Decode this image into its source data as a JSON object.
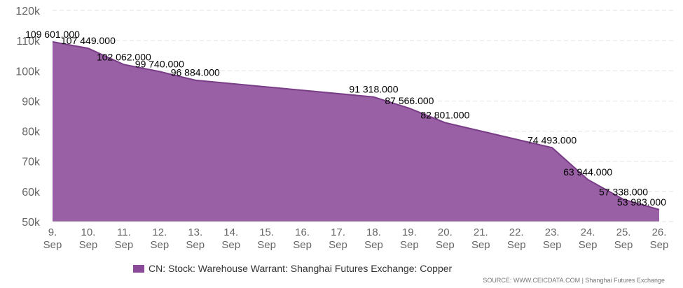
{
  "chart_data": {
    "type": "area",
    "x_ticks": [
      "9.\nSep",
      "10.\nSep",
      "11.\nSep",
      "12.\nSep",
      "13.\nSep",
      "14.\nSep",
      "15.\nSep",
      "16.\nSep",
      "17.\nSep",
      "18.\nSep",
      "19.\nSep",
      "20.\nSep",
      "21.\nSep",
      "22.\nSep",
      "23.\nSep",
      "24.\nSep",
      "25.\nSep",
      "26.\nSep"
    ],
    "y_ticks": [
      "50k",
      "60k",
      "70k",
      "80k",
      "90k",
      "100k",
      "110k",
      "120k"
    ],
    "ylim": [
      50000,
      120000
    ],
    "grid": true,
    "legend_position": "bottom",
    "series": [
      {
        "name": "CN: Stock: Warehouse Warrant: Shanghai Futures Exchange: Copper",
        "color": "#8b4a99",
        "points": [
          {
            "x": 0,
            "y": 109601,
            "label": "109 601.000"
          },
          {
            "x": 1,
            "y": 107449,
            "label": "107 449.000"
          },
          {
            "x": 2,
            "y": 102062,
            "label": "102 062.000"
          },
          {
            "x": 3,
            "y": 99740,
            "label": "99 740.000"
          },
          {
            "x": 4,
            "y": 96884,
            "label": "96 884.000"
          },
          {
            "x": 9,
            "y": 91318,
            "label": "91 318.000"
          },
          {
            "x": 10,
            "y": 87566,
            "label": "87 566.000"
          },
          {
            "x": 11,
            "y": 82801,
            "label": "82 801.000"
          },
          {
            "x": 14,
            "y": 74493,
            "label": "74 493.000"
          },
          {
            "x": 15,
            "y": 63944,
            "label": "63 944.000"
          },
          {
            "x": 16,
            "y": 57338,
            "label": "57 338.000"
          },
          {
            "x": 17,
            "y": 53983,
            "label": "53 983.000"
          }
        ]
      }
    ]
  },
  "source": "SOURCE: WWW.CEICDATA.COM | Shanghai Futures Exchange"
}
